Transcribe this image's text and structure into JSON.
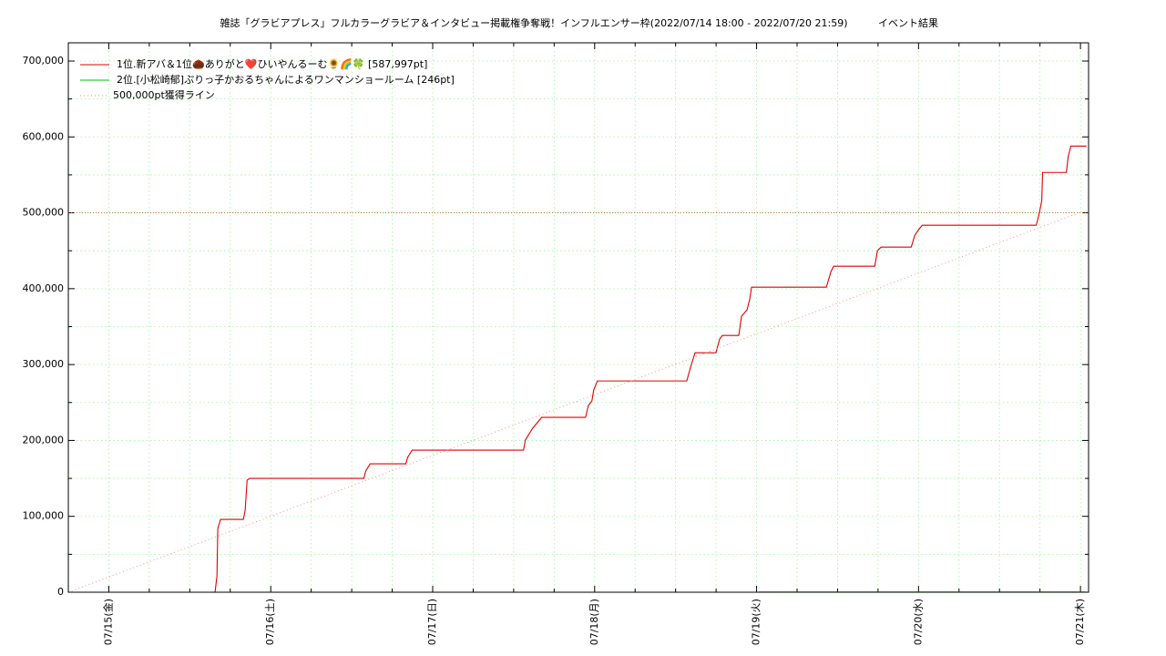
{
  "chart_data": {
    "type": "line",
    "title": "雑誌「グラビアプレス」フルカラーグラビア＆インタビュー掲載権争奪戦！インフルエンサー枠(2022/07/14 18:00 - 2022/07/20 21:59)",
    "subtitle": "イベント結果",
    "xlim": [
      14.75,
      21.05
    ],
    "xticks": [
      {
        "value": 15,
        "label": "07/15(金)"
      },
      {
        "value": 16,
        "label": "07/16(土)"
      },
      {
        "value": 17,
        "label": "07/17(日)"
      },
      {
        "value": 18,
        "label": "07/18(月)"
      },
      {
        "value": 19,
        "label": "07/19(火)"
      },
      {
        "value": 20,
        "label": "07/20(水)"
      },
      {
        "value": 21,
        "label": "07/21(木)"
      }
    ],
    "ylim": [
      0,
      724000
    ],
    "yticks": [
      0,
      {
        "value": 100000,
        "label": "100,000"
      },
      {
        "value": 200000,
        "label": "200,000"
      },
      {
        "value": 300000,
        "label": "300,000"
      },
      {
        "value": 400000,
        "label": "400,000"
      },
      {
        "value": 500000,
        "label": "500,000"
      },
      {
        "value": 600000,
        "label": "600,000"
      },
      {
        "value": 700000,
        "label": "700,000"
      }
    ],
    "grid": true,
    "legend": "top left",
    "reference_lines": [
      {
        "value": 500000,
        "color": "#cc6633"
      }
    ],
    "series": [
      {
        "name": "1位.新アバ＆1位🌰ありがと❤️ひいやんるーむ🌻🌈🍀 [587,997pt]",
        "color": "#e00000",
        "style": "solid",
        "x": [
          15.656,
          15.668,
          15.673,
          15.69,
          15.831,
          15.842,
          15.854,
          15.87,
          16.575,
          16.586,
          16.614,
          16.834,
          16.845,
          16.873,
          17.561,
          17.572,
          17.617,
          17.673,
          17.944,
          17.961,
          17.983,
          17.994,
          18.017,
          18.569,
          18.592,
          18.62,
          18.749,
          18.772,
          18.789,
          18.89,
          18.907,
          18.941,
          18.958,
          18.969,
          19.431,
          19.459,
          19.476,
          19.73,
          19.746,
          19.769,
          19.955,
          19.977,
          20.0,
          20.023,
          20.727,
          20.744,
          20.761,
          20.766,
          20.913,
          20.924,
          20.941,
          21.037
        ],
        "values": [
          0,
          21600,
          84000,
          96000,
          96000,
          108000,
          147600,
          150000,
          150000,
          159600,
          169200,
          169200,
          177600,
          187200,
          187200,
          200400,
          216000,
          230400,
          230400,
          246000,
          252000,
          266400,
          278400,
          278400,
          296400,
          315600,
          315600,
          333600,
          338400,
          338400,
          363600,
          372000,
          386400,
          402000,
          402000,
          422400,
          429600,
          429600,
          450000,
          454800,
          454800,
          470400,
          477600,
          483600,
          483600,
          498000,
          516000,
          553200,
          553200,
          573600,
          588000,
          587997
        ]
      },
      {
        "name": "2位.[小松崎郁]ぷりっ子かおるちゃんによるワンマンショールーム [246pt]",
        "color": "#00c000",
        "style": "solid",
        "x": [
          19.014,
          21.037
        ],
        "values": [
          246,
          246
        ]
      },
      {
        "name": "500,000pt獲得ライン",
        "color": "#ff8080",
        "style": "dotted",
        "x": [
          14.75,
          20.99
        ],
        "values": [
          0,
          500000
        ]
      }
    ]
  }
}
